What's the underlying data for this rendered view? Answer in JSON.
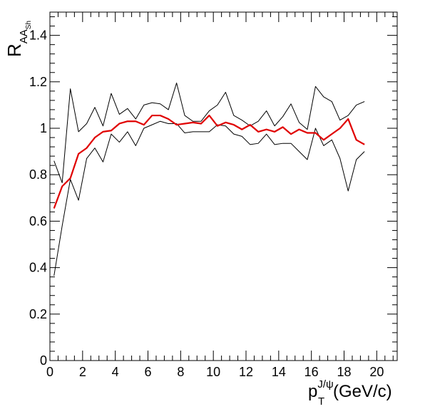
{
  "chart_data": {
    "type": "line",
    "xlabel_main": "p",
    "xlabel_sub": "T",
    "xlabel_sup": "J/ψ",
    "xlabel_unit": "(GeV/c)",
    "ylabel_main": "R",
    "ylabel_sub": "AA",
    "ylabel_subsub": "Sh",
    "xlim": [
      0,
      21.25
    ],
    "ylim": [
      0,
      1.5
    ],
    "x_ticks": [
      0,
      2,
      4,
      6,
      8,
      10,
      12,
      14,
      16,
      18,
      20
    ],
    "y_ticks": [
      0,
      0.2,
      0.4,
      0.6,
      0.8,
      1,
      1.2,
      1.4
    ],
    "grid": false,
    "x": [
      0.25,
      0.75,
      1.25,
      1.75,
      2.25,
      2.75,
      3.25,
      3.75,
      4.25,
      4.75,
      5.25,
      5.75,
      6.25,
      6.75,
      7.25,
      7.75,
      8.25,
      8.75,
      9.25,
      9.75,
      10.25,
      10.75,
      11.25,
      11.75,
      12.25,
      12.75,
      13.25,
      13.75,
      14.25,
      14.75,
      15.25,
      15.75,
      16.25,
      16.75,
      17.25,
      17.75,
      18.25,
      18.75,
      19.25
    ],
    "series": [
      {
        "color": "#e00000",
        "values": [
          0.655,
          0.75,
          0.785,
          0.89,
          0.915,
          0.96,
          0.985,
          0.99,
          1.02,
          1.03,
          1.03,
          1.015,
          1.055,
          1.055,
          1.04,
          1.015,
          1.02,
          1.025,
          1.02,
          1.055,
          1.01,
          1.025,
          1.015,
          0.995,
          1.015,
          0.985,
          0.995,
          0.985,
          1.005,
          0.975,
          0.995,
          0.98,
          0.98,
          0.95,
          0.975,
          1.0,
          1.04,
          0.95,
          0.93
        ]
      },
      {
        "color": "#000000",
        "values": [
          0.86,
          0.765,
          1.17,
          0.985,
          1.02,
          1.09,
          1.01,
          1.15,
          1.06,
          1.085,
          1.04,
          1.1,
          1.11,
          1.105,
          1.08,
          1.195,
          1.055,
          1.03,
          1.03,
          1.075,
          1.1,
          1.155,
          1.055,
          1.035,
          1.01,
          1.03,
          1.075,
          1.01,
          1.05,
          1.105,
          1.025,
          0.995,
          1.18,
          1.135,
          1.115,
          1.035,
          1.055,
          1.1,
          1.115
        ]
      },
      {
        "color": "#000000",
        "values": [
          0.365,
          0.58,
          0.78,
          0.69,
          0.87,
          0.915,
          0.855,
          0.975,
          0.94,
          0.985,
          0.925,
          1.0,
          1.015,
          1.03,
          1.02,
          1.02,
          0.98,
          0.985,
          0.985,
          0.985,
          1.015,
          1.01,
          0.975,
          0.965,
          0.93,
          0.935,
          0.975,
          0.93,
          0.935,
          0.935,
          0.9,
          0.865,
          1.0,
          0.925,
          0.95,
          0.87,
          0.73,
          0.865,
          0.9
        ]
      }
    ]
  }
}
